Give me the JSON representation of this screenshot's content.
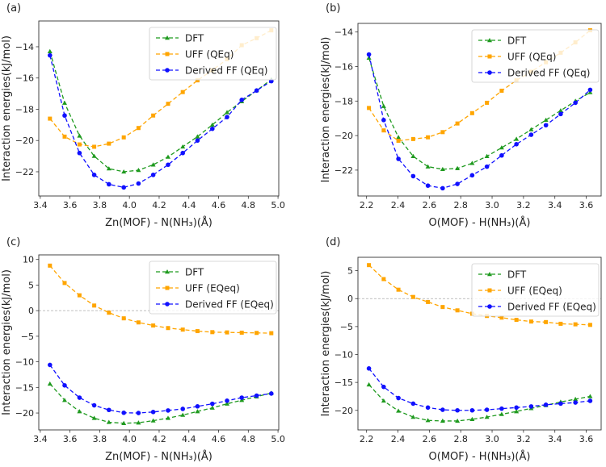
{
  "colors": {
    "DFT": "#1f9a1f",
    "UFF": "#ffa500",
    "Derived": "#1010ff",
    "zero_line": "#aaaaaa"
  },
  "chart_data": [
    {
      "type": "line",
      "panel_label": "(a)",
      "xlabel": "Zn(MOF) - N(NH₃)(Å)",
      "ylabel": "Interaction energies(kJ/mol)",
      "xlim": [
        3.39,
        5.005
      ],
      "ylim": [
        -23.55,
        -12.35
      ],
      "xticks": [
        3.4,
        3.6,
        3.8,
        4.0,
        4.2,
        4.4,
        4.6,
        4.8,
        5.0
      ],
      "xtick_labels": [
        "3.4",
        "3.6",
        "3.8",
        "4.0",
        "4.2",
        "4.4",
        "4.6",
        "4.8",
        "5.0"
      ],
      "yticks": [
        -22,
        -20,
        -18,
        -16,
        -14
      ],
      "ytick_labels": [
        "−22",
        "−20",
        "−18",
        "−16",
        "−14"
      ],
      "zero_line": false,
      "legend": "top-right",
      "x": [
        3.465,
        3.564,
        3.664,
        3.763,
        3.862,
        3.962,
        4.061,
        4.16,
        4.26,
        4.359,
        4.458,
        4.558,
        4.657,
        4.756,
        4.856,
        4.955
      ],
      "series": [
        {
          "name": "DFT",
          "marker": "triangle",
          "values": [
            -14.3,
            -17.6,
            -19.7,
            -21.0,
            -21.8,
            -22.0,
            -21.9,
            -21.55,
            -21.05,
            -20.4,
            -19.75,
            -19.0,
            -18.2,
            -17.5,
            -16.8,
            -16.1
          ]
        },
        {
          "name": "UFF (QEq)",
          "marker": "square",
          "values": [
            -18.6,
            -19.75,
            -20.25,
            -20.4,
            -20.2,
            -19.8,
            -19.2,
            -18.4,
            -17.65,
            -16.9,
            -16.15,
            -15.5,
            -14.8,
            -13.9,
            -13.45,
            -12.95
          ]
        },
        {
          "name": "Derived FF (QEq)",
          "marker": "circle",
          "values": [
            -14.55,
            -18.4,
            -20.8,
            -22.2,
            -22.8,
            -23.0,
            -22.75,
            -22.2,
            -21.55,
            -20.8,
            -20.0,
            -19.25,
            -18.5,
            -17.4,
            -16.8,
            -16.2
          ]
        }
      ]
    },
    {
      "type": "line",
      "panel_label": "(b)",
      "xlabel": "O(MOF) - H(NH₃)(Å)",
      "ylabel": "Interaction energies(kJ/mol)",
      "xlim": [
        2.145,
        3.695
      ],
      "ylim": [
        -23.5,
        -13.5
      ],
      "xticks": [
        2.2,
        2.4,
        2.6,
        2.8,
        3.0,
        3.2,
        3.4,
        3.6
      ],
      "xtick_labels": [
        "2.2",
        "2.4",
        "2.6",
        "2.8",
        "3.0",
        "3.2",
        "3.4",
        "3.6"
      ],
      "yticks": [
        -22,
        -20,
        -18,
        -16,
        -14
      ],
      "ytick_labels": [
        "−22",
        "−20",
        "−18",
        "−16",
        "−14"
      ],
      "zero_line": false,
      "legend": "top-right",
      "x": [
        2.215,
        2.309,
        2.403,
        2.497,
        2.591,
        2.685,
        2.779,
        2.873,
        2.967,
        3.061,
        3.155,
        3.249,
        3.343,
        3.437,
        3.531,
        3.625
      ],
      "series": [
        {
          "name": "DFT",
          "marker": "triangle",
          "values": [
            -15.5,
            -18.3,
            -20.1,
            -21.2,
            -21.8,
            -21.95,
            -21.9,
            -21.6,
            -21.2,
            -20.7,
            -20.2,
            -19.65,
            -19.1,
            -18.55,
            -18.0,
            -17.5
          ]
        },
        {
          "name": "UFF (QEq)",
          "marker": "square",
          "values": [
            -18.4,
            -19.7,
            -20.3,
            -20.2,
            -20.1,
            -19.8,
            -19.3,
            -18.7,
            -18.1,
            -17.4,
            -16.8,
            -16.3,
            -15.75,
            -15.2,
            -14.6,
            -13.9
          ]
        },
        {
          "name": "Derived FF (QEq)",
          "marker": "circle",
          "values": [
            -15.3,
            -19.1,
            -21.35,
            -22.35,
            -22.9,
            -23.05,
            -22.8,
            -22.3,
            -21.8,
            -21.15,
            -20.5,
            -19.95,
            -19.4,
            -18.75,
            -18.1,
            -17.35
          ]
        }
      ]
    },
    {
      "type": "line",
      "panel_label": "(c)",
      "xlabel": "Zn(MOF) - N(NH₃)(Å)",
      "ylabel": "Interaction energies(kJ/mol)",
      "xlim": [
        3.39,
        5.005
      ],
      "ylim": [
        -23.3,
        10.9
      ],
      "xticks": [
        3.4,
        3.6,
        3.8,
        4.0,
        4.2,
        4.4,
        4.6,
        4.8,
        5.0
      ],
      "xtick_labels": [
        "3.4",
        "3.6",
        "3.8",
        "4.0",
        "4.2",
        "4.4",
        "4.6",
        "4.8",
        "5.0"
      ],
      "yticks": [
        -20,
        -15,
        -10,
        -5,
        0,
        5,
        10
      ],
      "ytick_labels": [
        "−20",
        "−15",
        "−10",
        "−5",
        "0",
        "5",
        "10"
      ],
      "zero_line": true,
      "legend": "top-right",
      "x": [
        3.465,
        3.564,
        3.664,
        3.763,
        3.862,
        3.962,
        4.061,
        4.16,
        4.26,
        4.359,
        4.458,
        4.558,
        4.657,
        4.756,
        4.856,
        4.955
      ],
      "series": [
        {
          "name": "DFT",
          "marker": "triangle",
          "values": [
            -14.3,
            -17.5,
            -19.7,
            -21.0,
            -21.8,
            -22.0,
            -21.9,
            -21.5,
            -21.0,
            -20.4,
            -19.7,
            -19.0,
            -18.2,
            -17.5,
            -16.8,
            -16.1
          ]
        },
        {
          "name": "UFF (EQeq)",
          "marker": "square",
          "values": [
            8.8,
            5.4,
            3.0,
            1.0,
            -0.4,
            -1.5,
            -2.3,
            -2.9,
            -3.4,
            -3.7,
            -4.0,
            -4.2,
            -4.25,
            -4.3,
            -4.35,
            -4.4
          ]
        },
        {
          "name": "Derived FF (EQeq)",
          "marker": "circle",
          "values": [
            -10.6,
            -14.6,
            -17.0,
            -18.5,
            -19.4,
            -19.95,
            -20.0,
            -19.8,
            -19.5,
            -19.2,
            -18.7,
            -18.2,
            -17.6,
            -17.0,
            -16.6,
            -16.2
          ]
        }
      ]
    },
    {
      "type": "line",
      "panel_label": "(d)",
      "xlabel": "O(MOF) - H(NH₃)(Å)",
      "ylabel": "Interaction energies(kJ/mol)",
      "xlim": [
        2.145,
        3.695
      ],
      "ylim": [
        -23.5,
        7.4
      ],
      "xticks": [
        2.2,
        2.4,
        2.6,
        2.8,
        3.0,
        3.2,
        3.4,
        3.6
      ],
      "xtick_labels": [
        "2.2",
        "2.4",
        "2.6",
        "2.8",
        "3.0",
        "3.2",
        "3.4",
        "3.6"
      ],
      "yticks": [
        -20,
        -15,
        -10,
        -5,
        0,
        5
      ],
      "ytick_labels": [
        "−20",
        "−15",
        "−10",
        "−5",
        "0",
        "5"
      ],
      "zero_line": true,
      "legend": "top-right",
      "x": [
        2.215,
        2.309,
        2.403,
        2.497,
        2.591,
        2.685,
        2.779,
        2.873,
        2.967,
        3.061,
        3.155,
        3.249,
        3.343,
        3.437,
        3.531,
        3.625
      ],
      "series": [
        {
          "name": "DFT",
          "marker": "triangle",
          "values": [
            -15.4,
            -18.3,
            -20.1,
            -21.2,
            -21.8,
            -21.9,
            -21.9,
            -21.6,
            -21.2,
            -20.7,
            -20.2,
            -19.65,
            -19.1,
            -18.5,
            -18.0,
            -17.5
          ]
        },
        {
          "name": "UFF (EQeq)",
          "marker": "square",
          "values": [
            6.0,
            3.5,
            1.6,
            0.3,
            -0.6,
            -1.5,
            -2.1,
            -2.7,
            -3.1,
            -3.4,
            -3.8,
            -4.1,
            -4.2,
            -4.5,
            -4.6,
            -4.7
          ]
        },
        {
          "name": "Derived FF (EQeq)",
          "marker": "circle",
          "values": [
            -12.5,
            -15.8,
            -17.8,
            -18.8,
            -19.5,
            -19.9,
            -20.0,
            -20.0,
            -19.9,
            -19.7,
            -19.5,
            -19.3,
            -19.0,
            -18.8,
            -18.6,
            -18.3
          ]
        }
      ]
    }
  ]
}
